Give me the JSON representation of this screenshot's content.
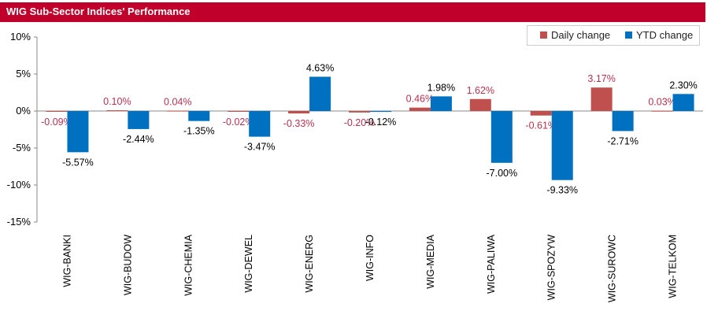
{
  "title": "WIG Sub-Sector Indices' Performance",
  "colors": {
    "title_bar": "#c0002a",
    "daily": "#c0504d",
    "ytd": "#0070c0",
    "daily_label": "#b5324f"
  },
  "chart_data": {
    "type": "bar",
    "title": "WIG Sub-Sector Indices' Performance",
    "categories": [
      "WIG-BANKI",
      "WIG-BUDOW",
      "WIG-CHEMIA",
      "WIG-DEWEL",
      "WIG-ENERG",
      "WIG-INFO",
      "WIG-MEDIA",
      "WIG-PALIWA",
      "WIG-SPOZYW",
      "WIG-SUROWC",
      "WIG-TELKOM"
    ],
    "series": [
      {
        "name": "Daily change",
        "values": [
          -0.09,
          0.1,
          0.04,
          -0.02,
          -0.33,
          -0.2,
          0.46,
          1.62,
          -0.61,
          3.17,
          0.03
        ],
        "labels": [
          "-0.09%",
          "0.10%",
          "0.04%",
          "-0.02%",
          "-0.33%",
          "-0.20%",
          "0.46%",
          "1.62%",
          "-0.61%",
          "3.17%",
          "0.03%"
        ]
      },
      {
        "name": "YTD change",
        "values": [
          -5.57,
          -2.44,
          -1.35,
          -3.47,
          4.63,
          -0.12,
          1.98,
          -7.0,
          -9.33,
          -2.71,
          2.3
        ],
        "labels": [
          "-5.57%",
          "-2.44%",
          "-1.35%",
          "-3.47%",
          "4.63%",
          "-0.12%",
          "1.98%",
          "-7.00%",
          "-9.33%",
          "-2.71%",
          "2.30%"
        ]
      }
    ],
    "ylim": [
      -15,
      10
    ],
    "yticks": [
      10,
      5,
      0,
      -5,
      -10,
      -15
    ],
    "ytick_labels": [
      "10%",
      "5%",
      "0%",
      "-5%",
      "-10%",
      "-15%"
    ],
    "xlabel": "",
    "ylabel": "",
    "legend": "top-right",
    "grid": false
  }
}
